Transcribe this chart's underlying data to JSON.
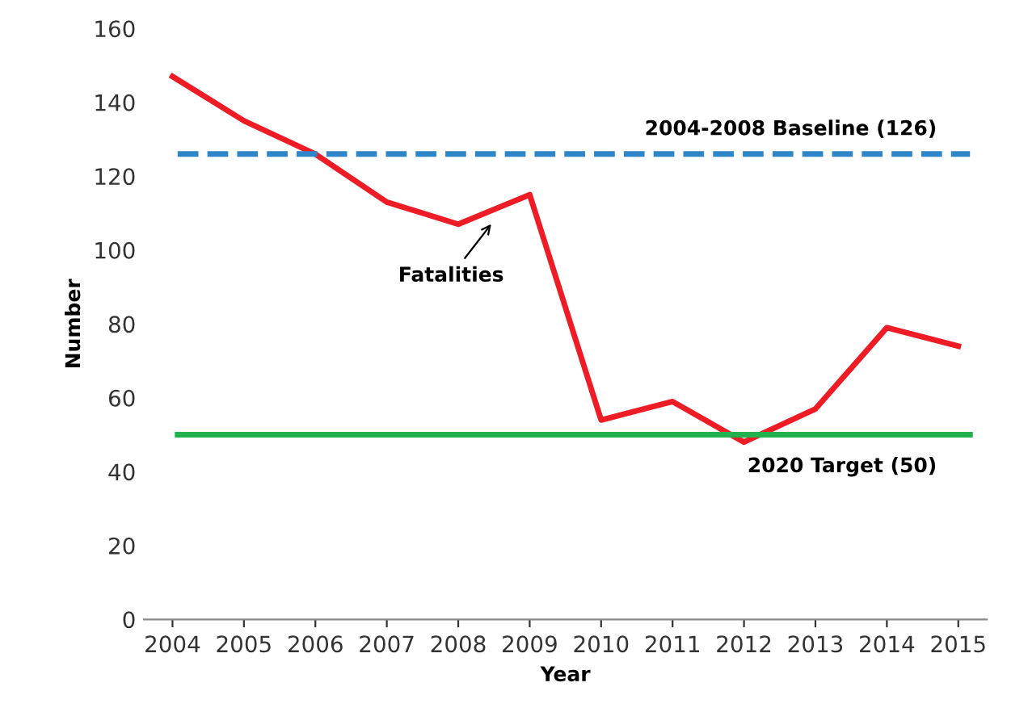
{
  "chart_data": {
    "type": "line",
    "xlabel": "Year",
    "ylabel": "Number",
    "categories": [
      "2004",
      "2005",
      "2006",
      "2007",
      "2008",
      "2009",
      "2010",
      "2011",
      "2012",
      "2013",
      "2014",
      "2015"
    ],
    "series": [
      {
        "name": "Fatalities",
        "color": "#ee1c25",
        "values": [
          147,
          135,
          126,
          113,
          107,
          115,
          54,
          59,
          48,
          57,
          79,
          74
        ]
      }
    ],
    "ylim": [
      0,
      160
    ],
    "yticks": [
      0,
      20,
      40,
      60,
      80,
      100,
      120,
      140,
      160
    ],
    "grid": false,
    "legend": false,
    "marker": "none",
    "line_style": "solid",
    "ref_lines": [
      {
        "axis": "y",
        "value": 126,
        "label": "2004-2008 Baseline (126)",
        "color": "#2e86c8",
        "line_style": "dashed"
      },
      {
        "axis": "y",
        "value": 50,
        "label": "2020 Target (50)",
        "color": "#22b14c",
        "line_style": "solid"
      }
    ]
  }
}
